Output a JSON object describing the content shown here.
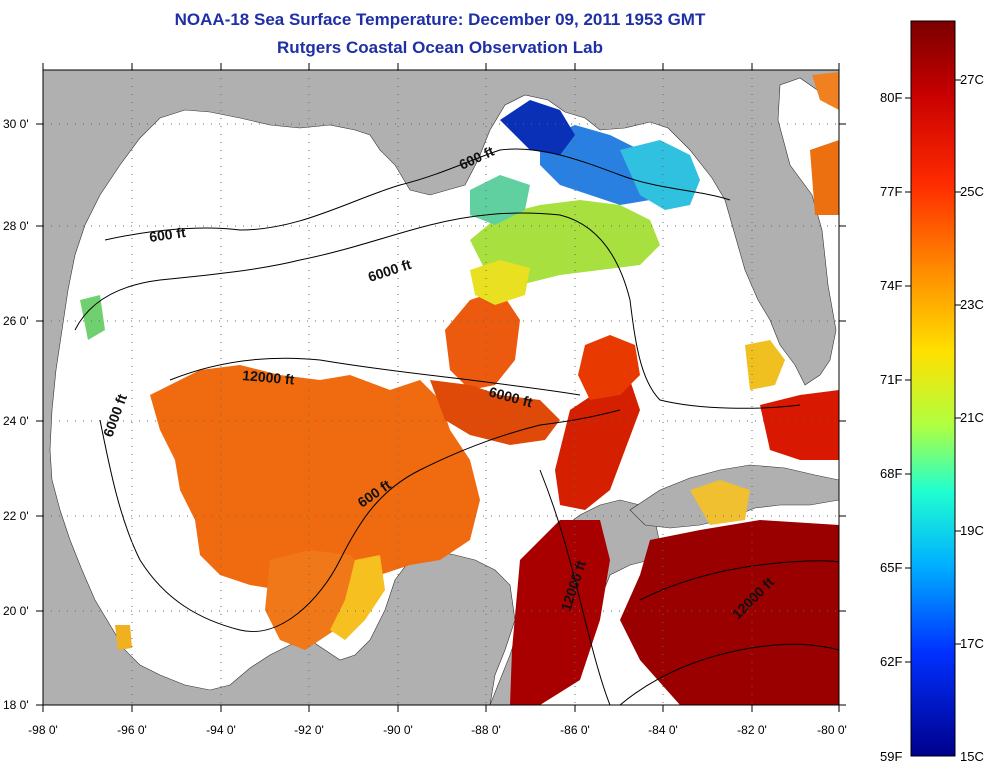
{
  "header": {
    "title": "NOAA-18 Sea Surface Temperature:  December 09, 2011 1953 GMT",
    "subtitle": "Rutgers Coastal Ocean Observation Lab"
  },
  "map": {
    "lon_range": [
      -98,
      -80
    ],
    "lat_range": [
      18,
      31
    ],
    "lon_tick_labels": [
      "-98 0'",
      "-96 0'",
      "-94 0'",
      "-92 0'",
      "-90 0'",
      "-88 0'",
      "-86 0'",
      "-84 0'",
      "-82 0'",
      "-80 0'"
    ],
    "lat_tick_labels": [
      "18 0'",
      "20 0'",
      "22 0'",
      "24 0'",
      "26 0'",
      "28 0'",
      "30 0'"
    ],
    "grid": "dotted",
    "land_color": "#b0b0b0",
    "cloud_color": "#ffffff",
    "contour_labels": [
      "600 ft",
      "600 ft",
      "6000 ft",
      "12000 ft",
      "6000 ft",
      "6000 ft",
      "600 ft",
      "12000 ft",
      "12000 ft"
    ]
  },
  "colorbar": {
    "fahrenheit_labels": [
      "80F",
      "77F",
      "74F",
      "71F",
      "68F",
      "65F",
      "62F",
      "59F"
    ],
    "celsius_labels": [
      "27C",
      "25C",
      "23C",
      "21C",
      "19C",
      "17C",
      "15C"
    ],
    "colors": [
      "#7a0000",
      "#d00000",
      "#ff5500",
      "#ffaa00",
      "#ffff00",
      "#7fff7f",
      "#00ffff",
      "#0080ff",
      "#0000c0",
      "#00007a"
    ]
  }
}
